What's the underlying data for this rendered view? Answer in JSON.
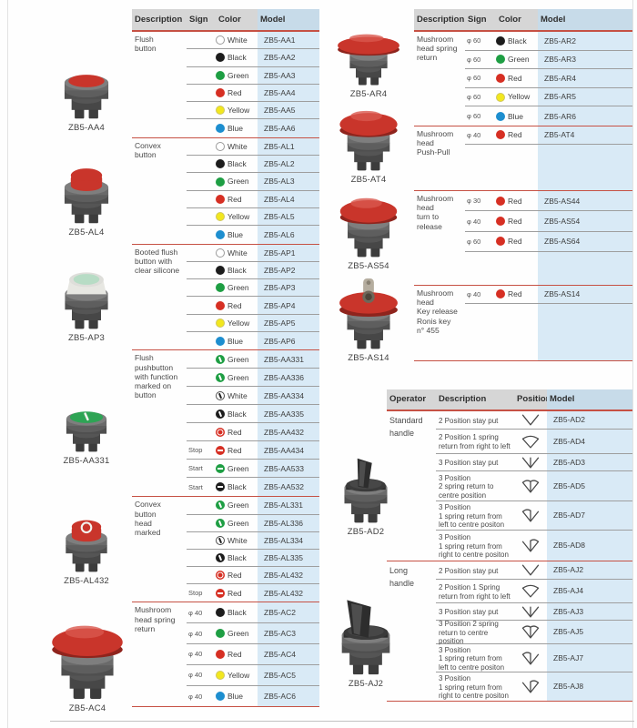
{
  "colors": {
    "separator_red": "#c65144",
    "header_bg": "#d6d6d6",
    "model_col_bg": "#d9eaf6",
    "row_line": "#9e9e9e",
    "dot_red": "#d62f23",
    "dot_green": "#1e9e43",
    "dot_blue": "#1d8ecf",
    "dot_yellow": "#f2e71e",
    "dot_black": "#1c1c1c"
  },
  "left_photos": [
    {
      "label": "ZB5-AA4",
      "type": "flush",
      "cap": "#c9352b",
      "mark": ""
    },
    {
      "label": "ZB5-AL4",
      "type": "convex",
      "cap": "#c9352b",
      "mark": ""
    },
    {
      "label": "ZB5-AP3",
      "type": "booted",
      "cap": "#b7dcc5",
      "mark": ""
    },
    {
      "label": "ZB5-AA331",
      "type": "flush",
      "cap": "#2ea455",
      "mark": "bar"
    },
    {
      "label": "ZB5-AL432",
      "type": "convex",
      "cap": "#c9352b",
      "mark": "ring"
    },
    {
      "label": "ZB5-AC4",
      "type": "mushroom-40",
      "cap": "#c9352b",
      "mark": ""
    }
  ],
  "mid_photos": [
    {
      "label": "ZB5-AR4",
      "type": "mushroom-60",
      "cap": "#c9352b",
      "mark": ""
    },
    {
      "label": "ZB5-AT4",
      "type": "mushroom-40",
      "cap": "#c9352b",
      "mark": ""
    },
    {
      "label": "ZB5-AS54",
      "type": "mushroom-40",
      "cap": "#c9352b",
      "mark": ""
    },
    {
      "label": "ZB5-AS14",
      "type": "mushroom-key",
      "cap": "#c9352b",
      "mark": ""
    },
    {
      "label": "ZB5-AD2",
      "type": "selector-standard",
      "cap": "#3a3a3a",
      "mark": ""
    },
    {
      "label": "ZB5-AJ2",
      "type": "selector-long",
      "cap": "#3a3a3a",
      "mark": ""
    }
  ],
  "table1": {
    "headers": [
      "Description",
      "Sign",
      "Color",
      "Model"
    ],
    "sections": [
      {
        "description": "Flush\nbutton",
        "rows": [
          {
            "sign": "",
            "dot": "white",
            "mark": "",
            "color": "White",
            "model": "ZB5-AA1"
          },
          {
            "sign": "",
            "dot": "black",
            "mark": "",
            "color": "Black",
            "model": "ZB5-AA2"
          },
          {
            "sign": "",
            "dot": "green",
            "mark": "",
            "color": "Green",
            "model": "ZB5-AA3"
          },
          {
            "sign": "",
            "dot": "red",
            "mark": "",
            "color": "Red",
            "model": "ZB5-AA4"
          },
          {
            "sign": "",
            "dot": "yellow",
            "mark": "",
            "color": "Yellow",
            "model": "ZB5-AA5"
          },
          {
            "sign": "",
            "dot": "blue",
            "mark": "",
            "color": "Blue",
            "model": "ZB5-AA6"
          }
        ]
      },
      {
        "description": "Convex\nbutton",
        "rows": [
          {
            "sign": "",
            "dot": "white",
            "mark": "",
            "color": "White",
            "model": "ZB5-AL1"
          },
          {
            "sign": "",
            "dot": "black",
            "mark": "",
            "color": "Black",
            "model": "ZB5-AL2"
          },
          {
            "sign": "",
            "dot": "green",
            "mark": "",
            "color": "Green",
            "model": "ZB5-AL3"
          },
          {
            "sign": "",
            "dot": "red",
            "mark": "",
            "color": "Red",
            "model": "ZB5-AL4"
          },
          {
            "sign": "",
            "dot": "yellow",
            "mark": "",
            "color": "Yellow",
            "model": "ZB5-AL5"
          },
          {
            "sign": "",
            "dot": "blue",
            "mark": "",
            "color": "Blue",
            "model": "ZB5-AL6"
          }
        ]
      },
      {
        "description": "Booted flush\nbutton with\nclear silicone",
        "rows": [
          {
            "sign": "",
            "dot": "white",
            "mark": "",
            "color": "White",
            "model": "ZB5-AP1"
          },
          {
            "sign": "",
            "dot": "black",
            "mark": "",
            "color": "Black",
            "model": "ZB5-AP2"
          },
          {
            "sign": "",
            "dot": "green",
            "mark": "",
            "color": "Green",
            "model": "ZB5-AP3"
          },
          {
            "sign": "",
            "dot": "red",
            "mark": "",
            "color": "Red",
            "model": "ZB5-AP4"
          },
          {
            "sign": "",
            "dot": "yellow",
            "mark": "",
            "color": "Yellow",
            "model": "ZB5-AP5"
          },
          {
            "sign": "",
            "dot": "blue",
            "mark": "",
            "color": "Blue",
            "model": "ZB5-AP6"
          }
        ]
      },
      {
        "description": "Flush\npushbutton\nwith function\nmarked on\nbutton",
        "rows": [
          {
            "sign": "",
            "dot": "green",
            "mark": "bar",
            "color": "Green",
            "model": "ZB5-AA331"
          },
          {
            "sign": "",
            "dot": "green",
            "mark": "bar",
            "color": "Green",
            "model": "ZB5-AA336"
          },
          {
            "sign": "",
            "dot": "white",
            "mark": "bar",
            "color": "White",
            "model": "ZB5-AA334"
          },
          {
            "sign": "",
            "dot": "black",
            "mark": "bar",
            "color": "Black",
            "model": "ZB5-AA335"
          },
          {
            "sign": "",
            "dot": "red",
            "mark": "ring",
            "color": "Red",
            "model": "ZB5-AA432"
          },
          {
            "sign": "Stop",
            "dot": "red",
            "mark": "dash",
            "color": "Red",
            "model": "ZB5-AA434"
          },
          {
            "sign": "Start",
            "dot": "green",
            "mark": "dash",
            "color": "Green",
            "model": "ZB5-AA533"
          },
          {
            "sign": "Start",
            "dot": "black",
            "mark": "dash",
            "color": "Black",
            "model": "ZB5-AA532"
          }
        ]
      },
      {
        "description": "Convex\nbutton\nhead\nmarked",
        "rows": [
          {
            "sign": "",
            "dot": "green",
            "mark": "bar",
            "color": "Green",
            "model": "ZB5-AL331"
          },
          {
            "sign": "",
            "dot": "green",
            "mark": "bar",
            "color": "Green",
            "model": "ZB5-AL336"
          },
          {
            "sign": "",
            "dot": "white",
            "mark": "bar",
            "color": "White",
            "model": "ZB5-AL334"
          },
          {
            "sign": "",
            "dot": "black",
            "mark": "bar",
            "color": "Black",
            "model": "ZB5-AL335"
          },
          {
            "sign": "",
            "dot": "red",
            "mark": "ring",
            "color": "Red",
            "model": "ZB5-AL432"
          },
          {
            "sign": "Stop",
            "dot": "red",
            "mark": "dash",
            "color": "Red",
            "model": "ZB5-AL432"
          }
        ]
      },
      {
        "description": "Mushroom\nhead spring\nreturn",
        "rows": [
          {
            "sign": "φ 40",
            "dot": "black",
            "mark": "",
            "color": "Black",
            "model": "ZB5-AC2"
          },
          {
            "sign": "φ 40",
            "dot": "green",
            "mark": "",
            "color": "Green",
            "model": "ZB5-AC3"
          },
          {
            "sign": "φ 40",
            "dot": "red",
            "mark": "",
            "color": "Red",
            "model": "ZB5-AC4"
          },
          {
            "sign": "φ 40",
            "dot": "yellow",
            "mark": "",
            "color": "Yellow",
            "model": "ZB5-AC5"
          },
          {
            "sign": "φ 40",
            "dot": "blue",
            "mark": "",
            "color": "Blue",
            "model": "ZB5-AC6"
          }
        ]
      }
    ]
  },
  "table2": {
    "headers": [
      "Description",
      "Sign",
      "Color",
      "Model"
    ],
    "sections": [
      {
        "description": "Mushroom\nhead spring\nreturn",
        "rows": [
          {
            "sign": "φ 60",
            "dot": "black",
            "mark": "",
            "color": "Black",
            "model": "ZB5-AR2"
          },
          {
            "sign": "φ 60",
            "dot": "green",
            "mark": "",
            "color": "Green",
            "model": "ZB5-AR3"
          },
          {
            "sign": "φ 60",
            "dot": "red",
            "mark": "",
            "color": "Red",
            "model": "ZB5-AR4"
          },
          {
            "sign": "φ 60",
            "dot": "yellow",
            "mark": "",
            "color": "Yellow",
            "model": "ZB5-AR5"
          },
          {
            "sign": "φ 60",
            "dot": "blue",
            "mark": "",
            "color": "Blue",
            "model": "ZB5-AR6"
          }
        ]
      },
      {
        "description": "Mushroom\nhead\nPush-Pull",
        "rows": [
          {
            "sign": "φ 40",
            "dot": "red",
            "mark": "",
            "color": "Red",
            "model": "ZB5-AT4"
          }
        ]
      },
      {
        "description": "Mushroom\nhead\nturn to\nrelease",
        "rows": [
          {
            "sign": "φ 30",
            "dot": "red",
            "mark": "",
            "color": "Red",
            "model": "ZB5-AS44"
          },
          {
            "sign": "φ 40",
            "dot": "red",
            "mark": "",
            "color": "Red",
            "model": "ZB5-AS54"
          },
          {
            "sign": "φ 60",
            "dot": "red",
            "mark": "",
            "color": "Red",
            "model": "ZB5-AS64"
          }
        ]
      },
      {
        "description": "Mushroom\nhead\nKey release\nRonis key\nn°  455",
        "rows": [
          {
            "sign": "φ 40",
            "dot": "red",
            "mark": "",
            "color": "Red",
            "model": "ZB5-AS14"
          }
        ]
      }
    ]
  },
  "table3": {
    "headers": [
      "Operator",
      "Description",
      "Position",
      "Model"
    ],
    "sections": [
      {
        "operator": "Standard\nhandle",
        "rows": [
          {
            "desc": "2 Position stay put",
            "icon": "v2",
            "model": "ZB5-AD2"
          },
          {
            "desc": "2 Position 1 spring\nreturn from right to left",
            "icon": "v2s",
            "model": "ZB5-AD4"
          },
          {
            "desc": "3 Position stay put",
            "icon": "v3",
            "model": "ZB5-AD3"
          },
          {
            "desc": "3 Position\n2 spring return to\ncentre position",
            "icon": "v3s2",
            "model": "ZB5-AD5"
          },
          {
            "desc": "3 Position\n1 spring return from\nleft to centre positon",
            "icon": "v3sl",
            "model": "ZB5-AD7"
          },
          {
            "desc": "3 Position\n1 spring return from\nright to centre positon",
            "icon": "v3sr",
            "model": "ZB5-AD8"
          }
        ]
      },
      {
        "operator": "Long\nhandle",
        "rows": [
          {
            "desc": "2 Position stay put",
            "icon": "v2",
            "model": "ZB5-AJ2"
          },
          {
            "desc": "2 Position 1 Spring\nreturn from right to left",
            "icon": "v2s",
            "model": "ZB5-AJ4"
          },
          {
            "desc": "3 Position stay put",
            "icon": "v3",
            "model": "ZB5-AJ3"
          },
          {
            "desc": "3 Position 2 spring\nreturn to centre position",
            "icon": "v3s2",
            "model": "ZB5-AJ5"
          },
          {
            "desc": "3 Position\n1 spring return from\nleft to centre positon",
            "icon": "v3sl",
            "model": "ZB5-AJ7"
          },
          {
            "desc": "3 Position\n1 spring return from\nright to centre positon",
            "icon": "v3sr",
            "model": "ZB5-AJ8"
          }
        ]
      }
    ]
  }
}
